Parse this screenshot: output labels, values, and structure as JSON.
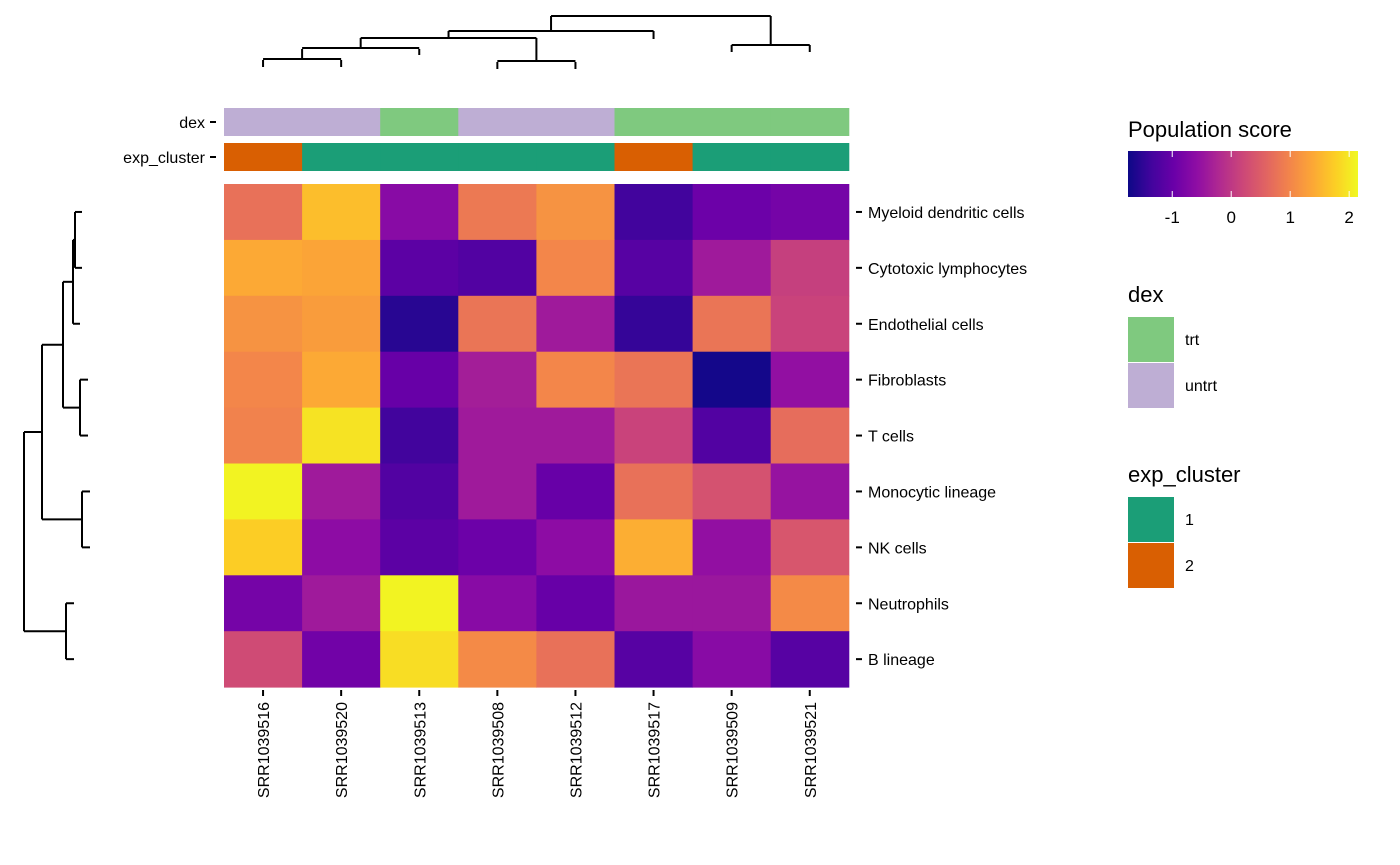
{
  "chart_data": {
    "type": "heatmap",
    "title": "",
    "rows": [
      "Myeloid dendritic cells",
      "Cytotoxic lymphocytes",
      "Endothelial cells",
      "Fibroblasts",
      "T cells",
      "Monocytic lineage",
      "NK cells",
      "Neutrophils",
      "B lineage"
    ],
    "columns": [
      "SRR1039516",
      "SRR1039520",
      "SRR1039513",
      "SRR1039508",
      "SRR1039512",
      "SRR1039517",
      "SRR1039509",
      "SRR1039521"
    ],
    "values": [
      [
        0.75,
        1.6,
        -0.65,
        0.85,
        1.15,
        -1.35,
        -0.95,
        -0.85
      ],
      [
        1.4,
        1.35,
        -1.1,
        -1.2,
        1.0,
        -1.15,
        -0.4,
        0.1
      ],
      [
        1.15,
        1.25,
        -1.55,
        0.8,
        -0.4,
        -1.45,
        0.8,
        0.15
      ],
      [
        1.0,
        1.4,
        -1.0,
        -0.35,
        1.0,
        0.8,
        -1.7,
        -0.55
      ],
      [
        0.95,
        1.95,
        -1.35,
        -0.4,
        -0.4,
        0.15,
        -1.2,
        0.7
      ],
      [
        2.1,
        -0.4,
        -1.2,
        -0.4,
        -1.0,
        0.75,
        0.35,
        -0.5
      ],
      [
        1.75,
        -0.6,
        -1.1,
        -0.95,
        -0.6,
        1.45,
        -0.55,
        0.4
      ],
      [
        -0.85,
        -0.4,
        2.1,
        -0.65,
        -1.0,
        -0.45,
        -0.45,
        1.05
      ],
      [
        0.25,
        -0.9,
        1.9,
        1.05,
        0.75,
        -1.15,
        -0.65,
        -1.15
      ]
    ],
    "row_annotations": {
      "dex": [
        "untrt",
        "untrt",
        "trt",
        "untrt",
        "untrt",
        "trt",
        "trt",
        "trt"
      ],
      "exp_cluster": [
        "2",
        "1",
        "1",
        "1",
        "1",
        "2",
        "1",
        "1"
      ]
    },
    "annotation_labels": [
      "dex",
      "exp_cluster"
    ],
    "colorbar": {
      "title": "Population score",
      "ticks": [
        -1,
        0,
        1,
        2
      ],
      "range": [
        -1.75,
        2.15
      ],
      "colormap": "plasma"
    },
    "legends": [
      {
        "title": "dex",
        "items": [
          {
            "label": "trt",
            "color": "#7FC97F"
          },
          {
            "label": "untrt",
            "color": "#BEAED4"
          }
        ]
      },
      {
        "title": "exp_cluster",
        "items": [
          {
            "label": "1",
            "color": "#1B9E77"
          },
          {
            "label": "2",
            "color": "#D95F02"
          }
        ]
      }
    ],
    "column_dendrogram": true,
    "row_dendrogram": true,
    "legend_position": "right"
  }
}
